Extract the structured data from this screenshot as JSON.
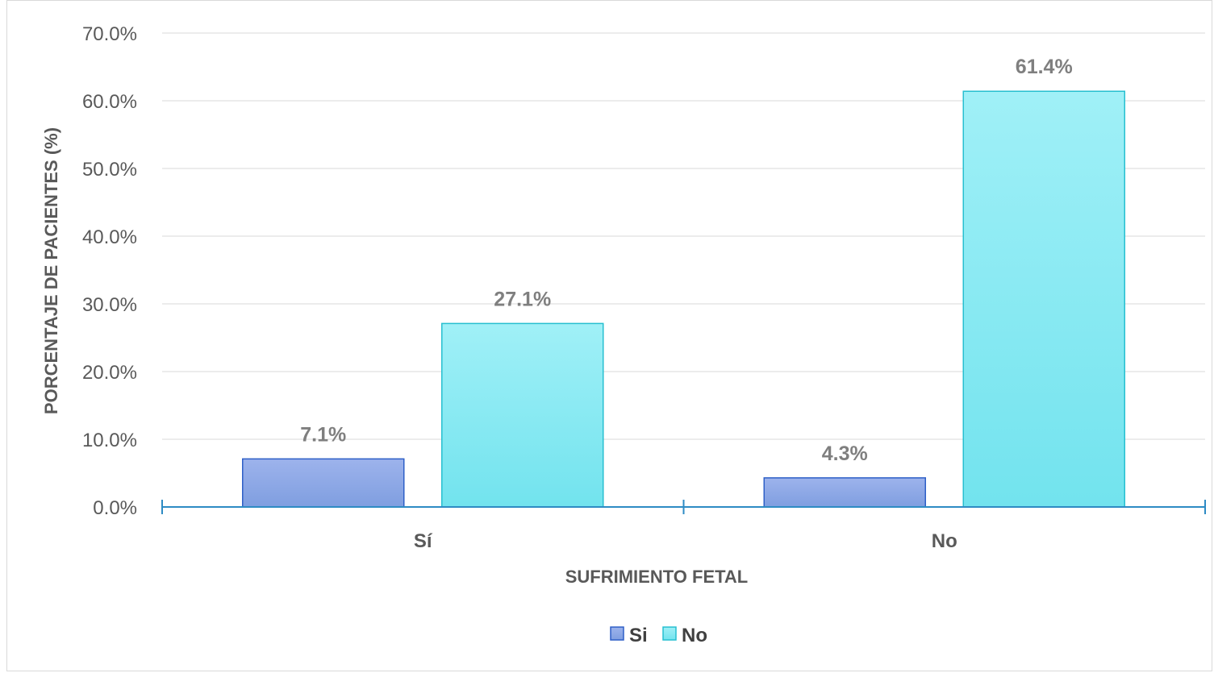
{
  "chart_data": {
    "type": "bar",
    "categories": [
      "Sí",
      "No"
    ],
    "series": [
      {
        "name": "Si",
        "values": [
          7.1,
          4.3
        ],
        "color_top": "#9db3ec",
        "color_bottom": "#7f9ee0",
        "stroke": "#2e5fc7"
      },
      {
        "name": "No",
        "values": [
          27.1,
          61.4
        ],
        "color_top": "#a0f0f7",
        "color_bottom": "#72e3ee",
        "stroke": "#27bfd0"
      }
    ],
    "data_labels": [
      [
        "7.1%",
        "4.3%"
      ],
      [
        "27.1%",
        "61.4%"
      ]
    ],
    "xlabel": "SUFRIMIENTO FETAL",
    "ylabel": "PORCENTAJE DE PACIENTES (%)",
    "ylim": [
      0,
      70
    ],
    "yticks": [
      0,
      10,
      20,
      30,
      40,
      50,
      60,
      70
    ],
    "ytick_labels": [
      "0.0%",
      "10.0%",
      "20.0%",
      "30.0%",
      "40.0%",
      "50.0%",
      "60.0%",
      "70.0%"
    ],
    "grid": true,
    "legend_position": "bottom",
    "axis_color": "#2e8bc4",
    "grid_color": "#d9d9d9"
  }
}
